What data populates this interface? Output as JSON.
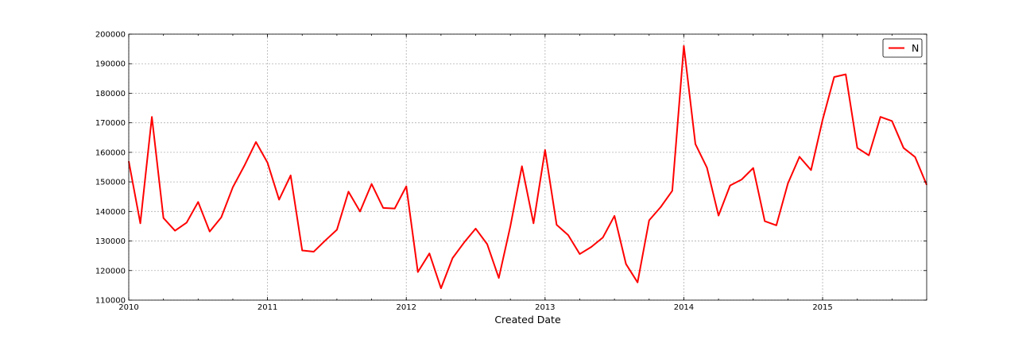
{
  "chart_data": {
    "type": "line",
    "xlabel": "Created Date",
    "ylabel": "",
    "ylim": [
      110000,
      200000
    ],
    "xlim": [
      "2010-01",
      "2015-10"
    ],
    "x_ticks": [
      "2010",
      "2011",
      "2012",
      "2013",
      "2014",
      "2015"
    ],
    "y_ticks": [
      "110000",
      "120000",
      "130000",
      "140000",
      "150000",
      "160000",
      "170000",
      "180000",
      "190000",
      "200000"
    ],
    "grid": true,
    "legend": "top-right",
    "series": [
      {
        "name": "N",
        "color": "#ff0000",
        "x": [
          "2010-01",
          "2010-02",
          "2010-03",
          "2010-04",
          "2010-05",
          "2010-06",
          "2010-07",
          "2010-08",
          "2010-09",
          "2010-10",
          "2010-11",
          "2010-12",
          "2011-01",
          "2011-02",
          "2011-03",
          "2011-04",
          "2011-05",
          "2011-06",
          "2011-07",
          "2011-08",
          "2011-09",
          "2011-10",
          "2011-11",
          "2011-12",
          "2012-01",
          "2012-02",
          "2012-03",
          "2012-04",
          "2012-05",
          "2012-06",
          "2012-07",
          "2012-08",
          "2012-09",
          "2012-10",
          "2012-11",
          "2012-12",
          "2013-01",
          "2013-02",
          "2013-03",
          "2013-04",
          "2013-05",
          "2013-06",
          "2013-07",
          "2013-08",
          "2013-09",
          "2013-10",
          "2013-11",
          "2013-12",
          "2014-01",
          "2014-02",
          "2014-03",
          "2014-04",
          "2014-05",
          "2014-06",
          "2014-07",
          "2014-08",
          "2014-09",
          "2014-10",
          "2014-11",
          "2014-12",
          "2015-01",
          "2015-02",
          "2015-03",
          "2015-04",
          "2015-05",
          "2015-06",
          "2015-07",
          "2015-08",
          "2015-09",
          "2015-10"
        ],
        "values": [
          157000,
          136000,
          172000,
          137800,
          133500,
          136200,
          143200,
          133200,
          138000,
          148200,
          155500,
          163500,
          156500,
          144000,
          152200,
          126800,
          126400,
          130200,
          133800,
          146700,
          140000,
          149300,
          141200,
          141000,
          148500,
          119500,
          125800,
          114000,
          124200,
          129500,
          134200,
          128900,
          117500,
          135000,
          155300,
          136000,
          160800,
          135500,
          132000,
          125600,
          128000,
          131200,
          138500,
          122200,
          116000,
          137000,
          141500,
          147000,
          196000,
          162800,
          154800,
          138600,
          148800,
          150800,
          154700,
          136700,
          135300,
          149500,
          158500,
          154000,
          171000,
          185500,
          186400,
          161500,
          159000,
          172000,
          170600,
          161500,
          158400,
          149000
        ]
      }
    ]
  }
}
